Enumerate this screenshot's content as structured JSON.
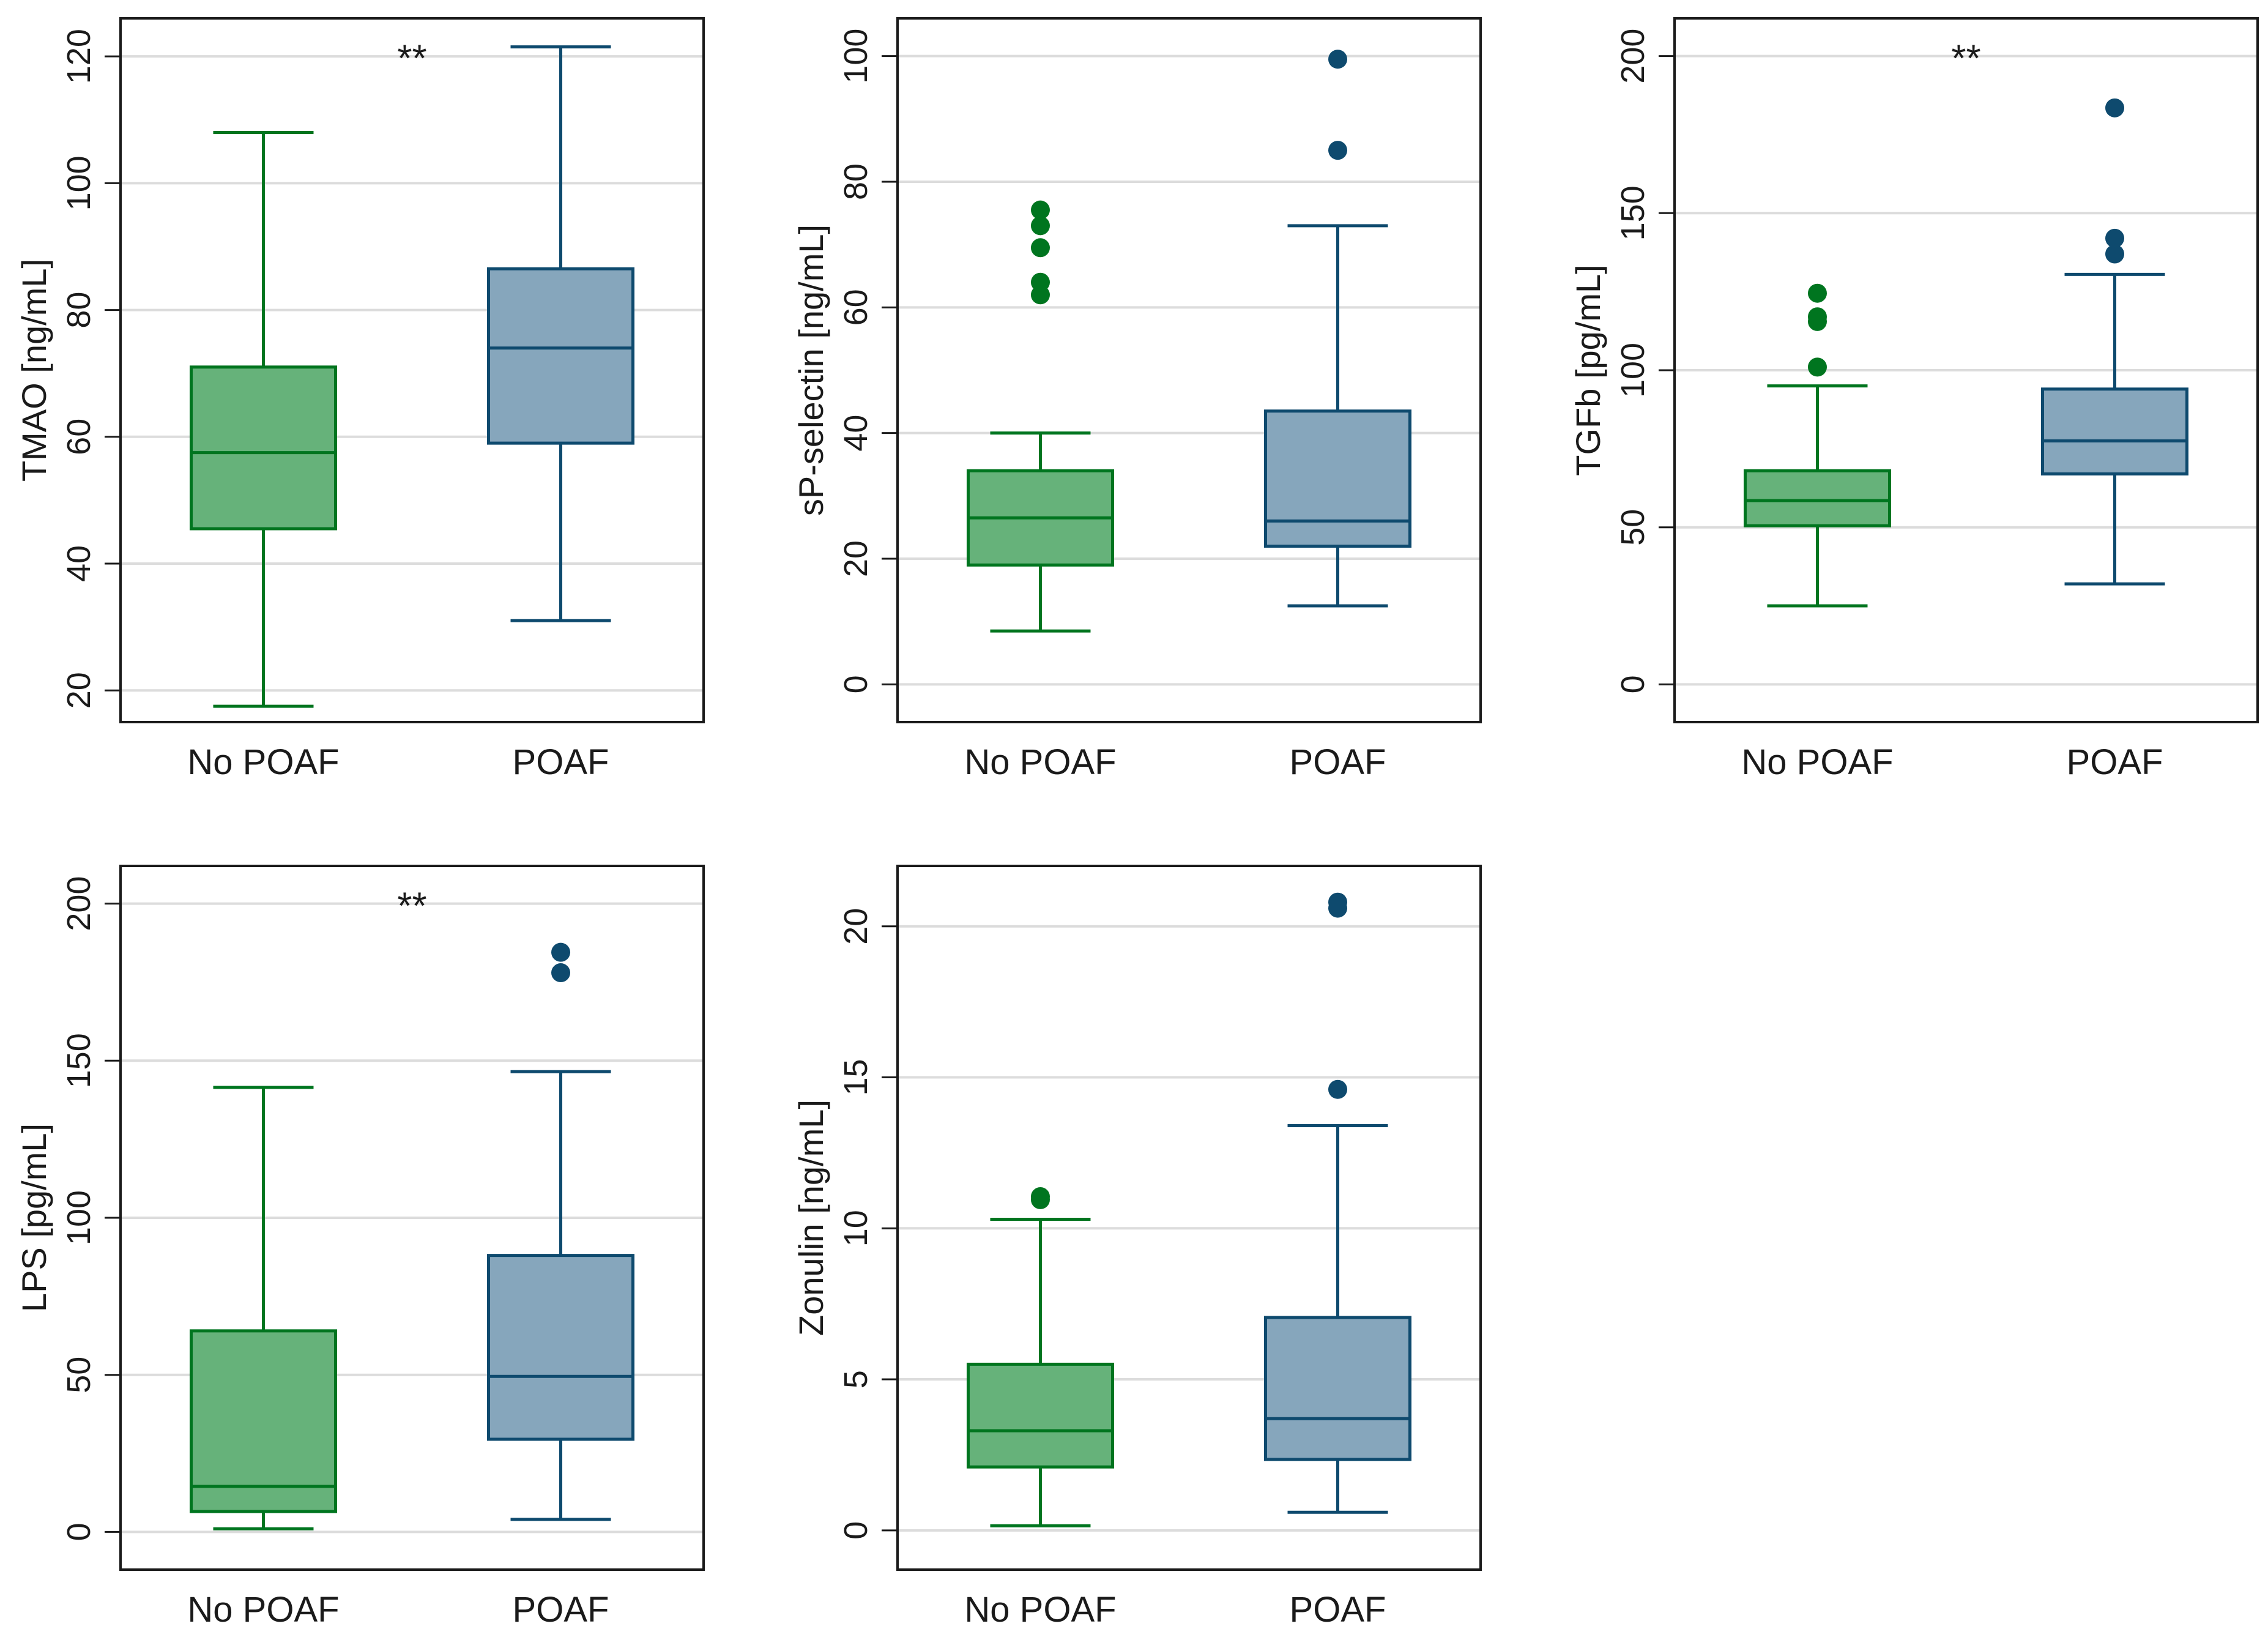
{
  "figure": {
    "colors": {
      "no_poaf_fill": "#66b27a",
      "no_poaf_stroke": "#00751f",
      "poaf_fill": "#86a6bc",
      "poaf_stroke": "#0e4a6e",
      "grid": "#dcdcdc",
      "frame": "#1a1a1a"
    }
  },
  "chart_data": [
    {
      "type": "box",
      "title": "",
      "ylabel": "TMAO [ng/mL]",
      "ylim": [
        15,
        126
      ],
      "yticks": [
        20,
        40,
        60,
        80,
        100,
        120
      ],
      "grid": true,
      "significance": "**",
      "categories": [
        "No POAF",
        "POAF"
      ],
      "boxes": [
        {
          "name": "No POAF",
          "whisker_low": 17.5,
          "q1": 45.5,
          "median": 57.5,
          "q3": 71,
          "whisker_high": 108,
          "outliers": []
        },
        {
          "name": "POAF",
          "whisker_low": 31,
          "q1": 59,
          "median": 74,
          "q3": 86.5,
          "whisker_high": 121.5,
          "outliers": []
        }
      ]
    },
    {
      "type": "box",
      "title": "",
      "ylabel": "sP-selectin [ng/mL]",
      "ylim": [
        -6,
        106
      ],
      "yticks": [
        0,
        20,
        40,
        60,
        80,
        100
      ],
      "grid": true,
      "significance": "",
      "categories": [
        "No POAF",
        "POAF"
      ],
      "boxes": [
        {
          "name": "No POAF",
          "whisker_low": 8.5,
          "q1": 19,
          "median": 26.5,
          "q3": 34,
          "whisker_high": 40,
          "outliers": [
            62,
            64,
            69.5,
            73,
            75.5
          ]
        },
        {
          "name": "POAF",
          "whisker_low": 12.5,
          "q1": 22,
          "median": 26,
          "q3": 43.5,
          "whisker_high": 73,
          "outliers": [
            85,
            99.5
          ]
        }
      ]
    },
    {
      "type": "box",
      "title": "",
      "ylabel": "TGFb [pg/mL]",
      "ylim": [
        -12,
        212
      ],
      "yticks": [
        0,
        50,
        100,
        150,
        200
      ],
      "grid": true,
      "significance": "**",
      "categories": [
        "No POAF",
        "POAF"
      ],
      "boxes": [
        {
          "name": "No POAF",
          "whisker_low": 25,
          "q1": 50.5,
          "median": 58.5,
          "q3": 68,
          "whisker_high": 95,
          "outliers": [
            101,
            115.5,
            117,
            124.5
          ]
        },
        {
          "name": "POAF",
          "whisker_low": 32,
          "q1": 67,
          "median": 77.5,
          "q3": 94,
          "whisker_high": 130.5,
          "outliers": [
            137,
            142,
            183.5
          ]
        }
      ]
    },
    {
      "type": "box",
      "title": "",
      "ylabel": "LPS [pg/mL]",
      "ylim": [
        -12,
        212
      ],
      "yticks": [
        0,
        50,
        100,
        150,
        200
      ],
      "grid": true,
      "significance": "**",
      "categories": [
        "No POAF",
        "POAF"
      ],
      "boxes": [
        {
          "name": "No POAF",
          "whisker_low": 1,
          "q1": 6.5,
          "median": 14.5,
          "q3": 64,
          "whisker_high": 141.5,
          "outliers": []
        },
        {
          "name": "POAF",
          "whisker_low": 4,
          "q1": 29.5,
          "median": 49.5,
          "q3": 88,
          "whisker_high": 146.5,
          "outliers": [
            178,
            184.5
          ]
        }
      ]
    },
    {
      "type": "box",
      "title": "",
      "ylabel": "Zonulin [ng/mL]",
      "ylim": [
        -1.3,
        22
      ],
      "yticks": [
        0,
        5,
        10,
        15,
        20
      ],
      "grid": true,
      "significance": "",
      "categories": [
        "No POAF",
        "POAF"
      ],
      "boxes": [
        {
          "name": "No POAF",
          "whisker_low": 0.15,
          "q1": 2.1,
          "median": 3.3,
          "q3": 5.5,
          "whisker_high": 10.3,
          "outliers": [
            10.95,
            11.05
          ]
        },
        {
          "name": "POAF",
          "whisker_low": 0.6,
          "q1": 2.35,
          "median": 3.7,
          "q3": 7.05,
          "whisker_high": 13.4,
          "outliers": [
            14.6,
            20.6,
            20.8
          ]
        }
      ]
    }
  ]
}
